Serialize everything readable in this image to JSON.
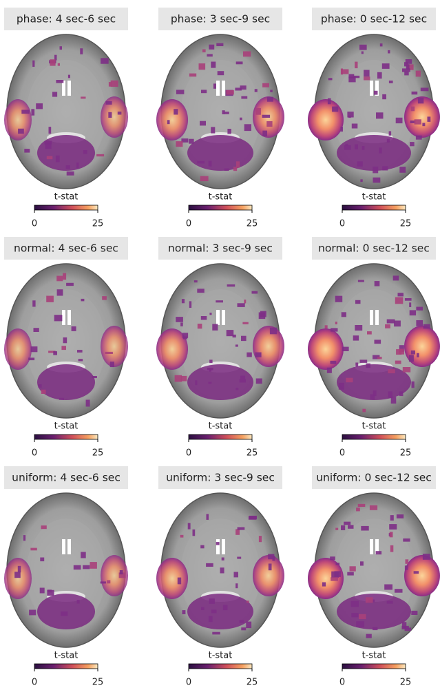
{
  "panels": [
    {
      "title": "phase: 4 sec-6 sec",
      "colorbar": {
        "label": "t-stat",
        "ticks": [
          0,
          25
        ]
      }
    },
    {
      "title": "phase: 3 sec-9 sec",
      "colorbar": {
        "label": "t-stat",
        "ticks": [
          0,
          25
        ]
      }
    },
    {
      "title": "phase: 0 sec-12 sec",
      "colorbar": {
        "label": "t-stat",
        "ticks": [
          0,
          25
        ]
      }
    },
    {
      "title": "normal: 4 sec-6 sec",
      "colorbar": {
        "label": "t-stat",
        "ticks": [
          0,
          25
        ]
      }
    },
    {
      "title": "normal: 3 sec-9 sec",
      "colorbar": {
        "label": "t-stat",
        "ticks": [
          0,
          25
        ]
      }
    },
    {
      "title": "normal: 0 sec-12 sec",
      "colorbar": {
        "label": "t-stat",
        "ticks": [
          0,
          25
        ]
      }
    },
    {
      "title": "uniform: 4 sec-6 sec",
      "colorbar": {
        "label": "t-stat",
        "ticks": [
          0,
          25
        ]
      }
    },
    {
      "title": "uniform: 3 sec-9 sec",
      "colorbar": {
        "label": "t-stat",
        "ticks": [
          0,
          25
        ]
      }
    },
    {
      "title": "uniform: 0 sec-12 sec",
      "colorbar": {
        "label": "t-stat",
        "ticks": [
          0,
          25
        ]
      }
    }
  ]
}
